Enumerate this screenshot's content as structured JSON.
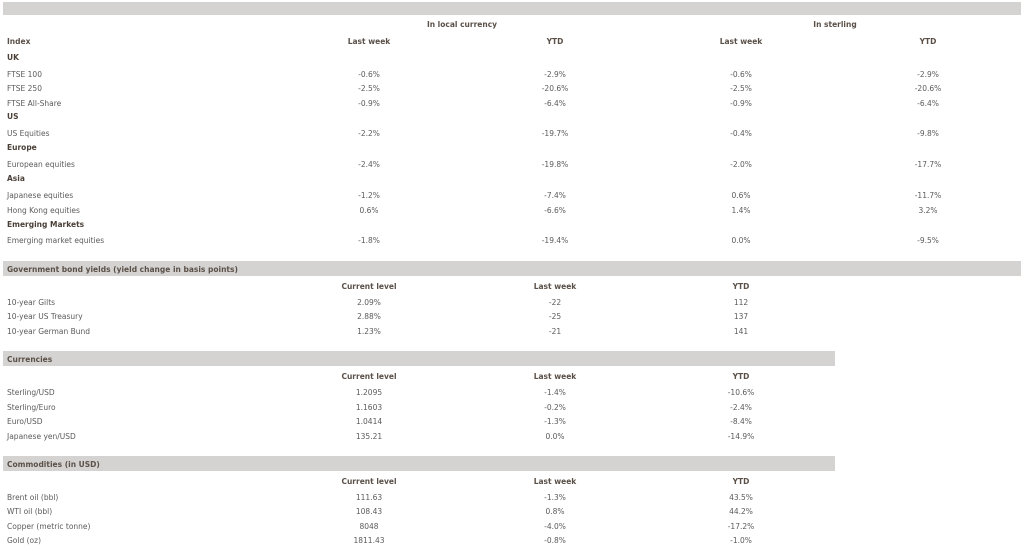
{
  "equities": {
    "group_headers": {
      "local": "In local currency",
      "sterling": "In sterling"
    },
    "columns": {
      "index": "Index",
      "local_week": "Last week",
      "local_ytd": "YTD",
      "st_week": "Last week",
      "st_ytd": "YTD"
    },
    "sections": [
      {
        "name": "UK",
        "rows": [
          {
            "label": "FTSE 100",
            "lw": "-0.6%",
            "lytd": "-2.9%",
            "sw": "-0.6%",
            "sytd": "-2.9%"
          },
          {
            "label": "FTSE 250",
            "lw": "-2.5%",
            "lytd": "-20.6%",
            "sw": "-2.5%",
            "sytd": "-20.6%"
          },
          {
            "label": "FTSE All-Share",
            "lw": "-0.9%",
            "lytd": "-6.4%",
            "sw": "-0.9%",
            "sytd": "-6.4%"
          }
        ]
      },
      {
        "name": "US",
        "rows": [
          {
            "label": "US Equities",
            "lw": "-2.2%",
            "lytd": "-19.7%",
            "sw": "-0.4%",
            "sytd": "-9.8%"
          }
        ]
      },
      {
        "name": "Europe",
        "rows": [
          {
            "label": "European equities",
            "lw": "-2.4%",
            "lytd": "-19.8%",
            "sw": "-2.0%",
            "sytd": "-17.7%"
          }
        ]
      },
      {
        "name": "Asia",
        "rows": [
          {
            "label": "Japanese equities",
            "lw": "-1.2%",
            "lytd": "-7.4%",
            "sw": "0.6%",
            "sytd": "-11.7%"
          },
          {
            "label": "Hong Kong equities",
            "lw": "0.6%",
            "lytd": "-6.6%",
            "sw": "1.4%",
            "sytd": "3.2%"
          }
        ]
      },
      {
        "name": "Emerging Markets",
        "rows": [
          {
            "label": "Emerging market equities",
            "lw": "-1.8%",
            "lytd": "-19.4%",
            "sw": "0.0%",
            "sytd": "-9.5%"
          }
        ]
      }
    ]
  },
  "bonds": {
    "title": "Government bond yields (yield change in basis points)",
    "columns": {
      "current": "Current level",
      "week": "Last week",
      "ytd": "YTD"
    },
    "rows": [
      {
        "label": "10-year Gilts",
        "current": "2.09%",
        "week": "-22",
        "ytd": "112"
      },
      {
        "label": "10-year US Treasury",
        "current": "2.88%",
        "week": "-25",
        "ytd": "137"
      },
      {
        "label": "10-year German Bund",
        "current": "1.23%",
        "week": "-21",
        "ytd": "141"
      }
    ]
  },
  "currencies": {
    "title": "Currencies",
    "columns": {
      "current": "Current level",
      "week": "Last week",
      "ytd": "YTD"
    },
    "rows": [
      {
        "label": "Sterling/USD",
        "current": "1.2095",
        "week": "-1.4%",
        "ytd": "-10.6%"
      },
      {
        "label": "Sterling/Euro",
        "current": "1.1603",
        "week": "-0.2%",
        "ytd": "-2.4%"
      },
      {
        "label": "Euro/USD",
        "current": "1.0414",
        "week": "-1.3%",
        "ytd": "-8.4%"
      },
      {
        "label": "Japanese yen/USD",
        "current": "135.21",
        "week": "0.0%",
        "ytd": "-14.9%"
      }
    ]
  },
  "commodities": {
    "title": "Commodities (in USD)",
    "columns": {
      "current": "Current level",
      "week": "Last week",
      "ytd": "YTD"
    },
    "rows": [
      {
        "label": "Brent oil (bbl)",
        "current": "111.63",
        "week": "-1.3%",
        "ytd": "43.5%"
      },
      {
        "label": "WTI oil (bbl)",
        "current": "108.43",
        "week": "0.8%",
        "ytd": "44.2%"
      },
      {
        "label": "Copper (metric tonne)",
        "current": "8048",
        "week": "-4.0%",
        "ytd": "-17.2%"
      },
      {
        "label": "Gold (oz)",
        "current": "1811.43",
        "week": "-0.8%",
        "ytd": "-1.0%"
      }
    ]
  }
}
